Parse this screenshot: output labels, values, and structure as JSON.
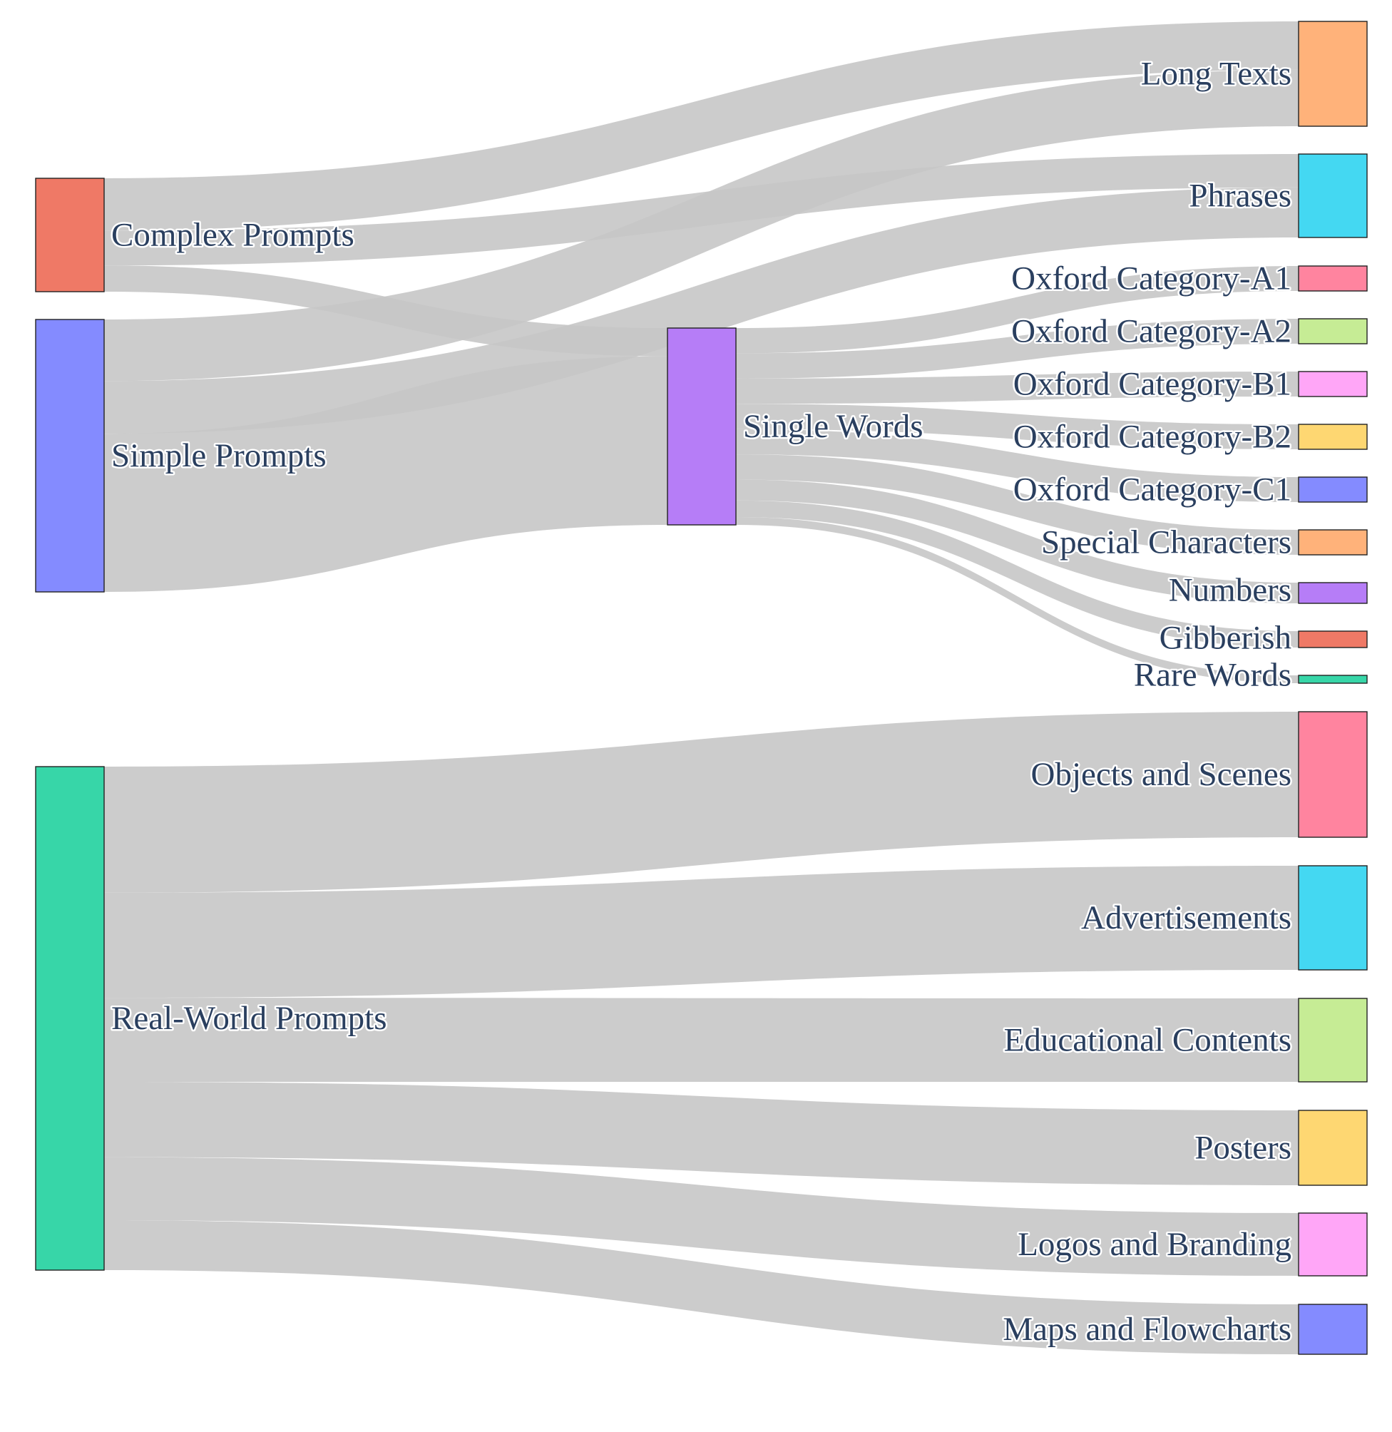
{
  "chart_data": {
    "type": "sankey",
    "link_color": "#c6c6c6",
    "nodes": [
      {
        "id": "complex",
        "label": "Complex Prompts",
        "color": "#ef7966"
      },
      {
        "id": "simple",
        "label": "Simple Prompts",
        "color": "#848bff"
      },
      {
        "id": "realworld",
        "label": "Real-World Prompts",
        "color": "#37d6a8"
      },
      {
        "id": "single",
        "label": "Single Words",
        "color": "#b67df7"
      },
      {
        "id": "longtexts",
        "label": "Long Texts",
        "color": "#ffb27a"
      },
      {
        "id": "phrases",
        "label": "Phrases",
        "color": "#44d8f2"
      },
      {
        "id": "a1",
        "label": "Oxford Category-A1",
        "color": "#ff849f"
      },
      {
        "id": "a2",
        "label": "Oxford Category-A2",
        "color": "#c6ec95"
      },
      {
        "id": "b1",
        "label": "Oxford Category-B1",
        "color": "#ffa6f7"
      },
      {
        "id": "b2",
        "label": "Oxford Category-B2",
        "color": "#fed772"
      },
      {
        "id": "c1",
        "label": "Oxford Category-C1",
        "color": "#848bff"
      },
      {
        "id": "special",
        "label": "Special Characters",
        "color": "#ffb27a"
      },
      {
        "id": "numbers",
        "label": "Numbers",
        "color": "#b67df7"
      },
      {
        "id": "gibberish",
        "label": "Gibberish",
        "color": "#ef7966"
      },
      {
        "id": "rare",
        "label": "Rare Words",
        "color": "#37d6a8"
      },
      {
        "id": "objects",
        "label": "Objects and Scenes",
        "color": "#ff849f"
      },
      {
        "id": "ads",
        "label": "Advertisements",
        "color": "#44d8f2"
      },
      {
        "id": "edu",
        "label": "Educational Contents",
        "color": "#c6ec95"
      },
      {
        "id": "posters",
        "label": "Posters",
        "color": "#fed772"
      },
      {
        "id": "logos",
        "label": "Logos and Branding",
        "color": "#ffa6f7"
      },
      {
        "id": "maps",
        "label": "Maps and Flowcharts",
        "color": "#848bff"
      }
    ],
    "links": [
      {
        "source": "complex",
        "target": "longtexts",
        "value": 60
      },
      {
        "source": "complex",
        "target": "phrases",
        "value": 40
      },
      {
        "source": "complex",
        "target": "single",
        "value": 30
      },
      {
        "source": "simple",
        "target": "longtexts",
        "value": 70
      },
      {
        "source": "simple",
        "target": "phrases",
        "value": 60
      },
      {
        "source": "simple",
        "target": "single",
        "value": 180
      },
      {
        "source": "single",
        "target": "a1",
        "value": 29
      },
      {
        "source": "single",
        "target": "a2",
        "value": 29
      },
      {
        "source": "single",
        "target": "b1",
        "value": 29
      },
      {
        "source": "single",
        "target": "b2",
        "value": 29
      },
      {
        "source": "single",
        "target": "c1",
        "value": 29
      },
      {
        "source": "single",
        "target": "special",
        "value": 29
      },
      {
        "source": "single",
        "target": "numbers",
        "value": 24
      },
      {
        "source": "single",
        "target": "gibberish",
        "value": 19
      },
      {
        "source": "single",
        "target": "rare",
        "value": 9
      },
      {
        "source": "realworld",
        "target": "objects",
        "value": 144
      },
      {
        "source": "realworld",
        "target": "ads",
        "value": 120
      },
      {
        "source": "realworld",
        "target": "edu",
        "value": 96
      },
      {
        "source": "realworld",
        "target": "posters",
        "value": 86
      },
      {
        "source": "realworld",
        "target": "logos",
        "value": 72
      },
      {
        "source": "realworld",
        "target": "maps",
        "value": 57
      }
    ]
  }
}
